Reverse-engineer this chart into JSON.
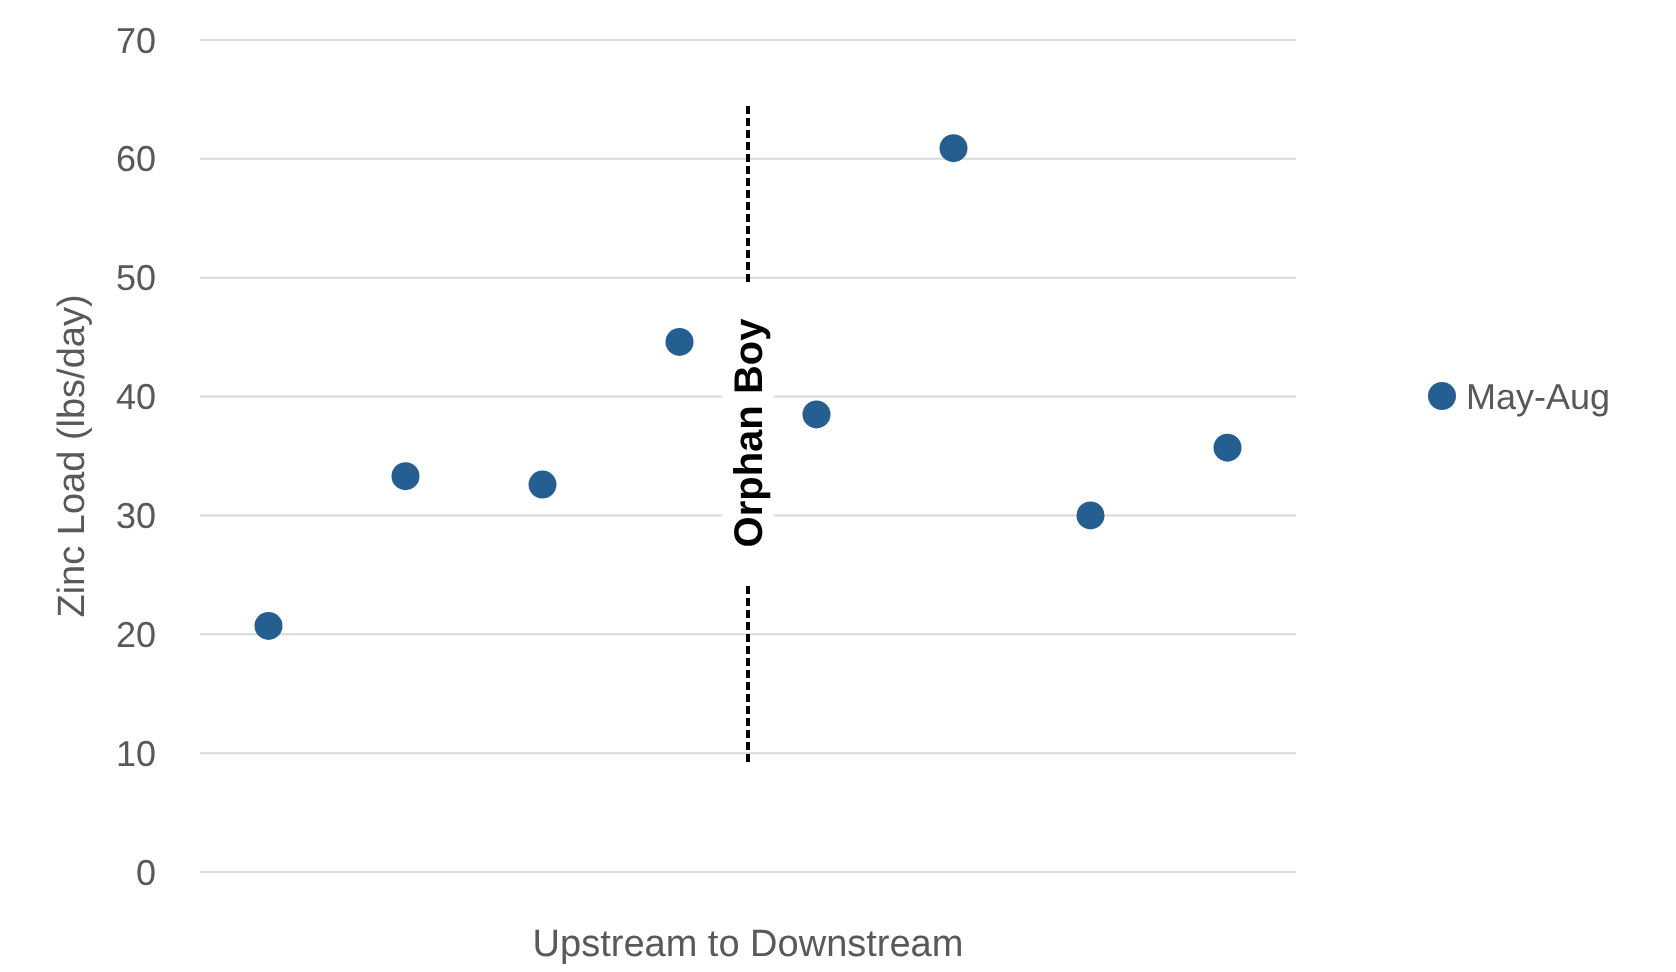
{
  "chart_data": {
    "type": "scatter",
    "xlabel": "Upstream to Downstream",
    "ylabel": "Zinc Load (lbs/day)",
    "categories": [
      null,
      null,
      null,
      null,
      null,
      null,
      null,
      null
    ],
    "series": [
      {
        "name": "May-Aug",
        "color": "#255e91",
        "values": [
          20.7,
          33.3,
          32.6,
          44.6,
          38.5,
          60.9,
          30.0,
          35.7
        ]
      }
    ],
    "ylim": [
      0,
      70
    ],
    "yticks": [
      0,
      10,
      20,
      30,
      40,
      50,
      60,
      70
    ],
    "grid": "y",
    "legend": "right",
    "marker": "circle",
    "annotations": [
      "Orphan Boy"
    ]
  }
}
